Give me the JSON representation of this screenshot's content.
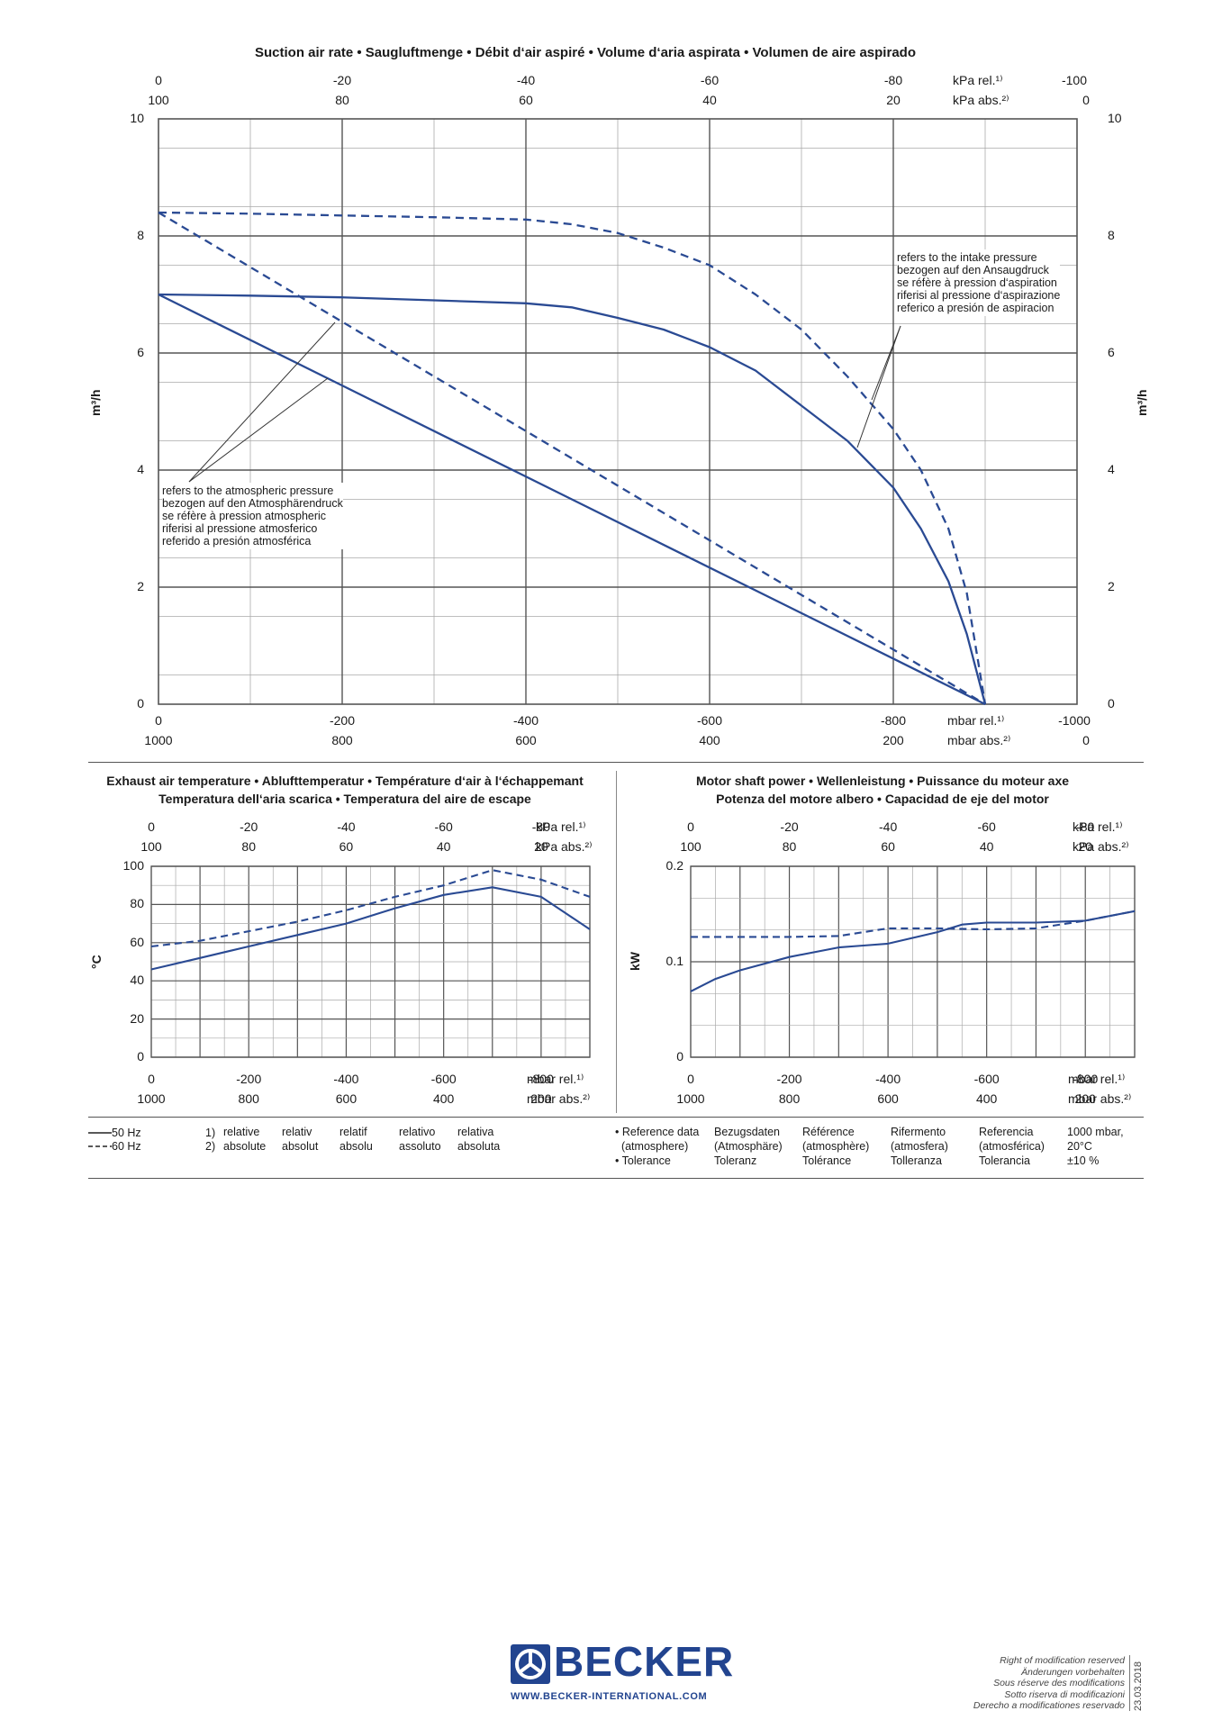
{
  "colors": {
    "curve": "#2a4a93",
    "grid": "#555555",
    "brand": "#22448f"
  },
  "main_chart": {
    "title": "Suction air rate  •  Saugluftmenge  •  Débit d‘air aspiré  •  Volume d‘aria aspirata  •  Volumen de aire aspirado",
    "ylabel": "m³/h",
    "kpa_rel_ticks": [
      "0",
      "-20",
      "-40",
      "-60",
      "-80",
      "-100"
    ],
    "kpa_abs_ticks": [
      "100",
      "80",
      "60",
      "40",
      "20",
      "0"
    ],
    "kpa_rel_unit": "kPa rel.¹⁾",
    "kpa_abs_unit": "kPa abs.²⁾",
    "mbar_rel_ticks": [
      "0",
      "-200",
      "-400",
      "-600",
      "-800",
      "-1000"
    ],
    "mbar_abs_ticks": [
      "1000",
      "800",
      "600",
      "400",
      "200",
      "0"
    ],
    "mbar_rel_unit": "mbar rel.¹⁾",
    "mbar_abs_unit": "mbar abs.²⁾",
    "y_ticks": [
      "0",
      "2",
      "4",
      "6",
      "8",
      "10"
    ],
    "note_atm": [
      "refers to the atmospheric pressure",
      "bezogen auf den Atmosphärendruck",
      "se réfère à pression atmospheric",
      "riferisi al pressione atmosferico",
      "referido a presión atmosférica"
    ],
    "note_intake": [
      "refers to the intake pressure",
      "bezogen auf den Ansaugdruck",
      "se réfère à pression d‘aspiration",
      "riferisi al pressione d‘aspirazione",
      "referico a presión de aspiracion"
    ]
  },
  "temp_chart": {
    "title1": "Exhaust air temperature  •  Ablufttemperatur  •  Température d‘air à l‘échappemant",
    "title2": "Temperatura dell‘aria scarica  •  Temperatura del aire de escape",
    "ylabel": "°C",
    "y_ticks": [
      "0",
      "20",
      "40",
      "60",
      "80",
      "100"
    ],
    "kpa_rel_ticks": [
      "0",
      "-20",
      "-40",
      "-60",
      "-80"
    ],
    "kpa_abs_ticks": [
      "100",
      "80",
      "60",
      "40",
      "20"
    ],
    "mbar_rel_ticks": [
      "0",
      "-200",
      "-400",
      "-600",
      "-800"
    ],
    "mbar_abs_ticks": [
      "1000",
      "800",
      "600",
      "400",
      "200"
    ],
    "kpa_rel_unit": "kPa rel.¹⁾",
    "kpa_abs_unit": "kPa abs.²⁾",
    "mbar_rel_unit": "mbar rel.¹⁾",
    "mbar_abs_unit": "mbar abs.²⁾"
  },
  "power_chart": {
    "title1": "Motor shaft power  •  Wellenleistung  •  Puissance du moteur axe",
    "title2": "Potenza del motore albero  •  Capacidad de eje del motor",
    "ylabel": "kW",
    "y_ticks": [
      "0",
      "0.1",
      "0.2"
    ],
    "kpa_rel_ticks": [
      "0",
      "-20",
      "-40",
      "-60",
      "-80"
    ],
    "kpa_abs_ticks": [
      "100",
      "80",
      "60",
      "40",
      "20"
    ],
    "mbar_rel_ticks": [
      "0",
      "-200",
      "-400",
      "-600",
      "-800"
    ],
    "mbar_abs_ticks": [
      "1000",
      "800",
      "600",
      "400",
      "200"
    ],
    "kpa_rel_unit": "kPa rel.¹⁾",
    "kpa_abs_unit": "kPa abs.²⁾",
    "mbar_rel_unit": "mbar rel.¹⁾",
    "mbar_abs_unit": "mbar abs.²⁾"
  },
  "chart_data": [
    {
      "type": "line",
      "title": "Suction air rate",
      "xlabel": "mbar rel.",
      "ylabel": "m³/h",
      "xlim": [
        0,
        -1000
      ],
      "ylim": [
        0,
        10
      ],
      "series": [
        {
          "name": "50 Hz (intake pressure)",
          "style": "solid",
          "x": [
            0,
            -100,
            -200,
            -300,
            -400,
            -450,
            -500,
            -550,
            -600,
            -650,
            -700,
            -750,
            -800,
            -830,
            -860,
            -880,
            -900
          ],
          "y": [
            7.0,
            6.98,
            6.95,
            6.9,
            6.85,
            6.78,
            6.6,
            6.4,
            6.1,
            5.7,
            5.1,
            4.5,
            3.7,
            3.0,
            2.1,
            1.2,
            0.0
          ]
        },
        {
          "name": "50 Hz (atmospheric pressure)",
          "style": "solid",
          "x": [
            0,
            -900
          ],
          "y": [
            7.0,
            0.0
          ]
        },
        {
          "name": "60 Hz (intake pressure)",
          "style": "dashed",
          "x": [
            0,
            -100,
            -200,
            -300,
            -400,
            -450,
            -500,
            -550,
            -600,
            -650,
            -700,
            -750,
            -800,
            -830,
            -860,
            -880,
            -900
          ],
          "y": [
            8.4,
            8.38,
            8.35,
            8.32,
            8.28,
            8.2,
            8.05,
            7.8,
            7.5,
            7.0,
            6.4,
            5.6,
            4.7,
            4.0,
            3.0,
            1.9,
            0.0
          ]
        },
        {
          "name": "60 Hz (atmospheric pressure)",
          "style": "dashed",
          "x": [
            0,
            -900
          ],
          "y": [
            8.4,
            0.0
          ]
        }
      ]
    },
    {
      "type": "line",
      "title": "Exhaust air temperature",
      "xlabel": "mbar rel.",
      "ylabel": "°C",
      "xlim": [
        0,
        -900
      ],
      "ylim": [
        0,
        100
      ],
      "series": [
        {
          "name": "50 Hz",
          "style": "solid",
          "x": [
            0,
            -100,
            -200,
            -300,
            -400,
            -500,
            -600,
            -700,
            -800,
            -900
          ],
          "y": [
            46,
            52,
            58,
            64,
            70,
            78,
            85,
            89,
            84,
            67
          ]
        },
        {
          "name": "60 Hz",
          "style": "dashed",
          "x": [
            0,
            -100,
            -200,
            -300,
            -400,
            -500,
            -600,
            -700,
            -800,
            -900
          ],
          "y": [
            58,
            61,
            66,
            71,
            77,
            84,
            90,
            98,
            93,
            84
          ]
        }
      ]
    },
    {
      "type": "line",
      "title": "Motor shaft power",
      "xlabel": "mbar rel.",
      "ylabel": "kW",
      "xlim": [
        0,
        -900
      ],
      "ylim": [
        0,
        0.2
      ],
      "series": [
        {
          "name": "50 Hz",
          "style": "solid",
          "x": [
            0,
            -50,
            -100,
            -200,
            -300,
            -350,
            -400,
            -500,
            -550,
            -600,
            -700,
            -800,
            -900
          ],
          "y": [
            0.069,
            0.082,
            0.091,
            0.105,
            0.115,
            0.117,
            0.119,
            0.131,
            0.139,
            0.141,
            0.141,
            0.143,
            0.153
          ]
        },
        {
          "name": "60 Hz",
          "style": "dashed",
          "x": [
            0,
            -100,
            -200,
            -300,
            -400,
            -500,
            -600,
            -700,
            -800,
            -900
          ],
          "y": [
            0.126,
            0.126,
            0.126,
            0.127,
            0.135,
            0.135,
            0.134,
            0.135,
            0.143,
            0.153
          ]
        }
      ]
    }
  ],
  "legend": {
    "hz50": "50 Hz",
    "hz60": "60 Hz",
    "rel_num": "1)",
    "abs_num": "2)",
    "relative": [
      "relative",
      "relativ",
      "relatif",
      "relativo",
      "relativa"
    ],
    "absolute": [
      "absolute",
      "absolut",
      "absolu",
      "assoluto",
      "absoluta"
    ]
  },
  "reference": {
    "row1": [
      "• Reference data",
      "Bezugsdaten",
      "Référence",
      "Rifermento",
      "Referencia",
      "1000 mbar,"
    ],
    "row2": [
      "  (atmosphere)",
      "(Atmosphäre)",
      "(atmosphère)",
      "(atmosfera)",
      "(atmosférica)",
      "20°C"
    ],
    "row3": [
      "• Tolerance",
      "Toleranz",
      "Tolérance",
      "Tolleranza",
      "Tolerancia",
      "±10 %"
    ]
  },
  "footer": {
    "brand": "BECKER",
    "url": "WWW.BECKER-INTERNATIONAL.COM",
    "rights": [
      "Right of modification reserved",
      "Änderungen vorbehalten",
      "Sous réserve des modifications",
      "Sotto riserva di modificazioni",
      "Derecho a modificationes reservado"
    ],
    "date": "23.03.2018"
  }
}
